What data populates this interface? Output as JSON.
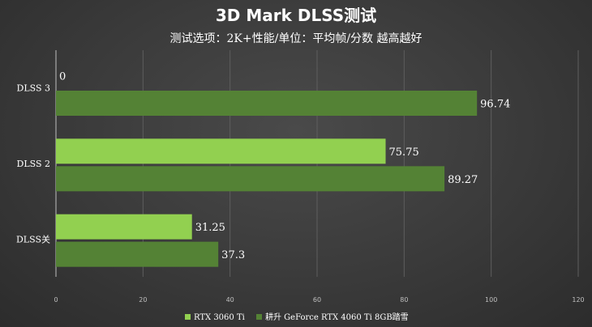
{
  "chart_data": {
    "type": "bar",
    "orientation": "horizontal",
    "title": "3D Mark DLSS测试",
    "subtitle": "测试选项：2K+性能/单位：平均帧/分数 越高越好",
    "categories": [
      "DLSS 3",
      "DLSS 2",
      "DLSS关"
    ],
    "series": [
      {
        "name": "RTX 3060 Ti",
        "color": "#92d050",
        "values": [
          0,
          75.75,
          31.25
        ],
        "labels": [
          "0",
          "75.75",
          "31.25"
        ]
      },
      {
        "name": "耕升 GeForce RTX 4060 Ti 8GB踏雪",
        "color": "#548235",
        "values": [
          96.74,
          89.27,
          37.3
        ],
        "labels": [
          "96.74",
          "89.27",
          "37.3"
        ]
      }
    ],
    "xlim": [
      0,
      120
    ],
    "xticks": [
      "0",
      "20",
      "40",
      "60",
      "80",
      "100",
      "120"
    ],
    "grid": true,
    "legend": "bottom"
  }
}
